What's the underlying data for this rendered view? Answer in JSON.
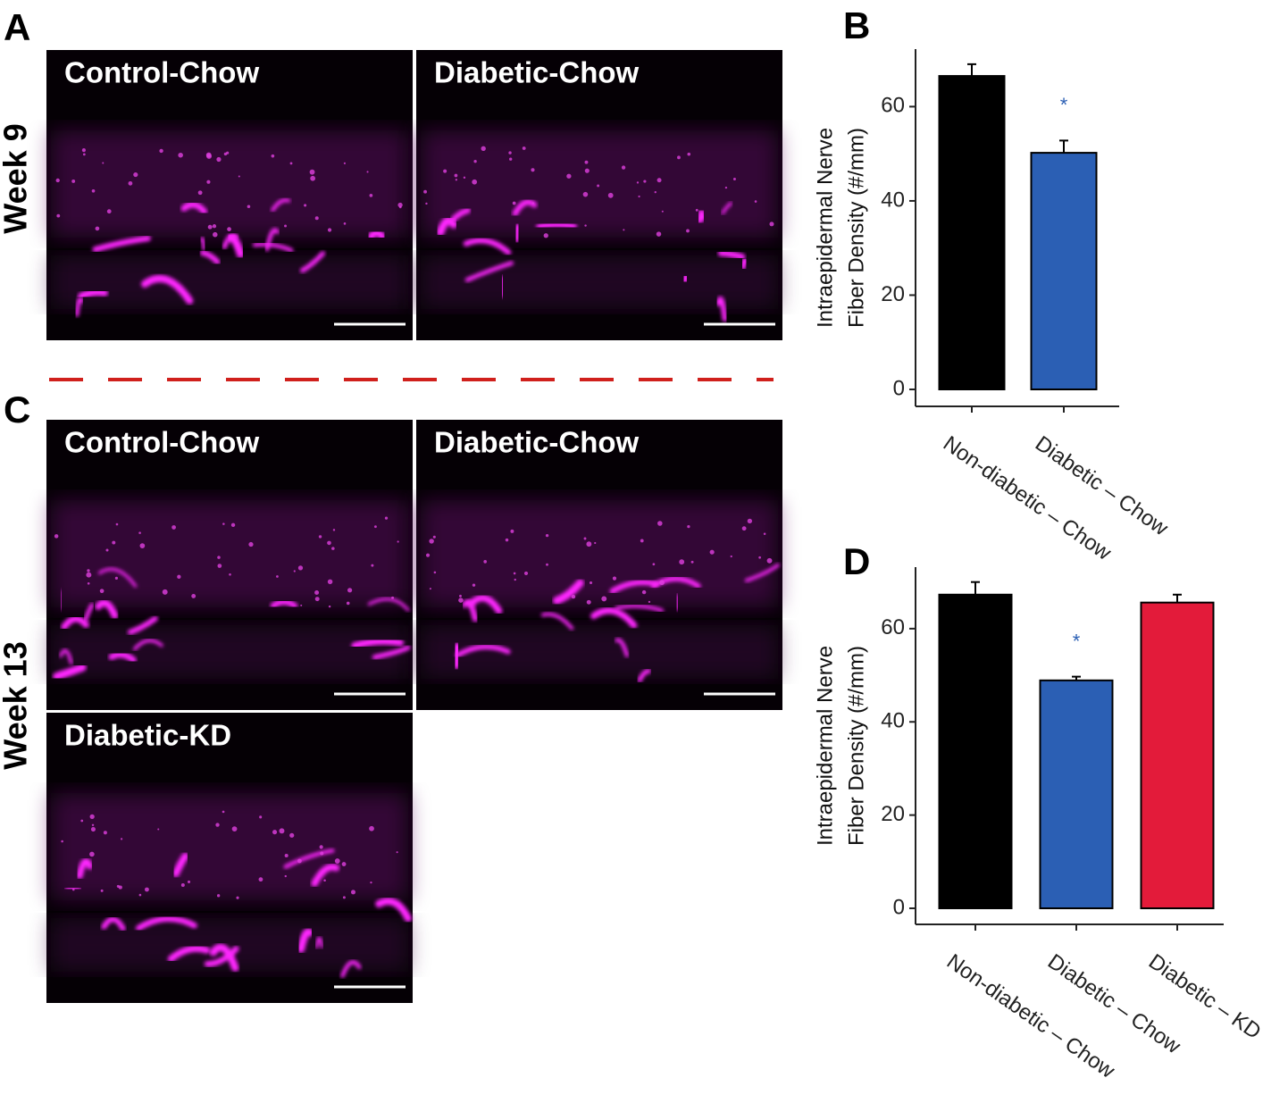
{
  "panel_labels": [
    "A",
    "B",
    "C",
    "D"
  ],
  "rows": [
    "Week 9",
    "Week 13"
  ],
  "images": [
    "Control-Chow",
    "Diabetic-Chow",
    "Control-Chow",
    "Diabetic-Chow",
    "Diabetic-KD"
  ],
  "chart_data": [
    {
      "type": "bar",
      "ylabel": [
        "Intraepidermal Nerve",
        "Fiber Density (#/mm)"
      ],
      "categories": [
        "Non-diabetic – Chow",
        "Diabetic – Chow"
      ],
      "values": [
        66.5,
        50.2
      ],
      "errors": [
        2.5,
        2.6
      ],
      "significance": [
        null,
        "*"
      ],
      "colors": [
        "#000000",
        "#2b5fb4"
      ],
      "ylim": [
        -3.6,
        72.2
      ],
      "yticks": [
        0,
        20,
        40,
        60
      ]
    },
    {
      "type": "bar",
      "ylabel": [
        "Intraepidermal Nerve",
        "Fiber Density (#/mm)"
      ],
      "categories": [
        "Non-diabetic – Chow",
        "Diabetic – Chow",
        "Diabetic – KD"
      ],
      "values": [
        67.3,
        48.9,
        65.6
      ],
      "errors": [
        2.7,
        0.8,
        1.7
      ],
      "significance": [
        null,
        "*",
        null
      ],
      "colors": [
        "#000000",
        "#2b5fb4",
        "#e31b3a"
      ],
      "ylim": [
        -3.45,
        73.2
      ],
      "yticks": [
        0,
        20,
        40,
        60
      ]
    }
  ]
}
